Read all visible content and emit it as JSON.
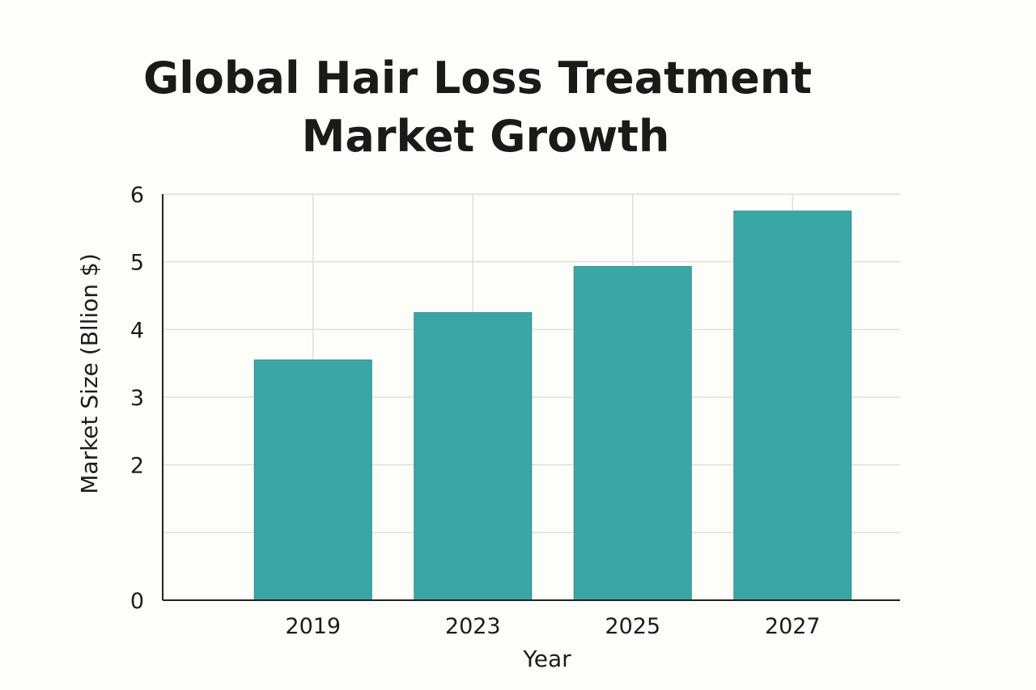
{
  "chart_data": {
    "type": "bar",
    "title_lines": [
      "Global Hair Loss Treatment",
      "Market Growth"
    ],
    "xlabel": "Year",
    "ylabel": "Market Size (Bllion $)",
    "categories": [
      "2019",
      "2023",
      "2025",
      "2027"
    ],
    "values": [
      3.55,
      4.25,
      4.93,
      5.75
    ],
    "ylim": [
      0,
      6
    ],
    "yticks": [
      0,
      2,
      3,
      4,
      5,
      6
    ],
    "grid": true,
    "bar_color": "#3aa6a6"
  }
}
